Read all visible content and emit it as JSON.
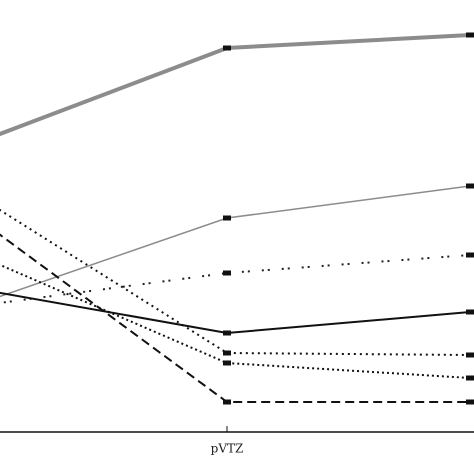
{
  "chart_data": {
    "type": "line",
    "categories": [
      null,
      "pVTZ",
      null
    ],
    "ylim": [
      0,
      432
    ],
    "series": [
      {
        "color": "#8c8c8c",
        "width": 4,
        "dash": "none",
        "values": [
          292,
          384,
          397
        ]
      },
      {
        "color": "#8c8c8c",
        "width": 1.5,
        "dash": "none",
        "values": [
          130,
          214,
          246
        ]
      },
      {
        "color": "#222222",
        "width": 2,
        "dash": "2 4 2 12",
        "values": [
          127,
          159,
          177
        ]
      },
      {
        "color": "#111111",
        "width": 2,
        "dash": "none",
        "values": [
          142,
          99,
          120
        ]
      },
      {
        "color": "#111111",
        "width": 2,
        "dash": "9 5",
        "values": [
          209,
          30,
          30
        ]
      },
      {
        "color": "#111111",
        "width": 2,
        "dash": "2 4",
        "values": [
          232,
          79,
          77
        ]
      },
      {
        "color": "#111111",
        "width": 2,
        "dash": "2 3",
        "values": [
          174,
          69,
          54
        ]
      }
    ]
  }
}
